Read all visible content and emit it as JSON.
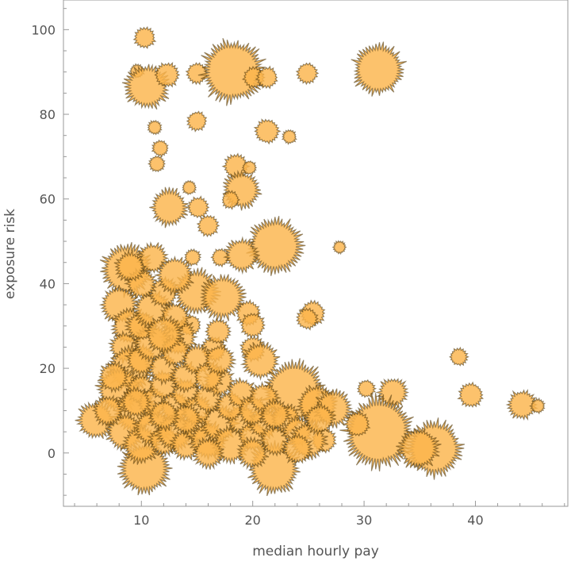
{
  "chart_data": {
    "type": "scatter",
    "subtype": "bubble",
    "title": "",
    "xlabel": "median hourly pay",
    "ylabel": "exposure risk",
    "xlim": [
      3,
      48.3
    ],
    "ylim": [
      -12.6,
      107
    ],
    "xticks": [
      10,
      20,
      30,
      40
    ],
    "yticks": [
      0,
      20,
      40,
      60,
      80,
      100
    ],
    "grid": false,
    "color": "#fbb54c",
    "points": [
      [
        10.3,
        98.1,
        3
      ],
      [
        9.6,
        90.2,
        2
      ],
      [
        10.5,
        86.5,
        6
      ],
      [
        12.3,
        89.3,
        3.5
      ],
      [
        15.0,
        89.7,
        3
      ],
      [
        18.2,
        90.2,
        8.5
      ],
      [
        20.1,
        88.7,
        3
      ],
      [
        21.3,
        88.7,
        3
      ],
      [
        24.9,
        89.7,
        3
      ],
      [
        31.3,
        90.6,
        7
      ],
      [
        11.2,
        76.9,
        2
      ],
      [
        15.0,
        78.4,
        2.8
      ],
      [
        21.3,
        76.0,
        3.5
      ],
      [
        23.3,
        74.7,
        2
      ],
      [
        11.7,
        72.0,
        2.3
      ],
      [
        11.4,
        68.3,
        2.3
      ],
      [
        18.5,
        67.7,
        3.5
      ],
      [
        19.7,
        67.4,
        2
      ],
      [
        19.0,
        62.1,
        5
      ],
      [
        14.3,
        62.7,
        2
      ],
      [
        12.5,
        58.0,
        5
      ],
      [
        15.1,
        58.0,
        3
      ],
      [
        16.0,
        53.7,
        3
      ],
      [
        18.0,
        59.8,
        2.5
      ],
      [
        22.0,
        49.0,
        7.5
      ],
      [
        27.8,
        48.6,
        1.8
      ],
      [
        14.6,
        46.2,
        2.3
      ],
      [
        17.1,
        46.2,
        2.5
      ],
      [
        19.0,
        46.7,
        4.5
      ],
      [
        8.7,
        43.3,
        7
      ],
      [
        14.9,
        38.1,
        6
      ],
      [
        17.3,
        36.8,
        6
      ],
      [
        19.6,
        33.0,
        3.5
      ],
      [
        20.0,
        30.2,
        3.5
      ],
      [
        25.4,
        33.0,
        3.5
      ],
      [
        24.9,
        31.7,
        3
      ],
      [
        38.5,
        22.7,
        2.5
      ],
      [
        30.2,
        15.2,
        2.5
      ],
      [
        32.6,
        14.3,
        4
      ],
      [
        39.6,
        13.7,
        3.5
      ],
      [
        44.2,
        11.4,
        4
      ],
      [
        45.6,
        11.1,
        2
      ],
      [
        31.3,
        4.9,
        9.5
      ],
      [
        36.3,
        1.1,
        7.5
      ],
      [
        34.9,
        1.1,
        5.5
      ],
      [
        23.7,
        14.3,
        8.5
      ],
      [
        25.8,
        11.4,
        5.5
      ],
      [
        27.2,
        10.5,
        5
      ],
      [
        26.4,
        3.0,
        3.5
      ],
      [
        29.4,
        6.8,
        3.5
      ],
      [
        21.9,
        -3.6,
        7
      ],
      [
        20.0,
        24.6,
        3.5
      ],
      [
        20.7,
        21.8,
        5
      ],
      [
        16.5,
        24.6,
        3.5
      ],
      [
        16.9,
        28.7,
        3.5
      ],
      [
        14.4,
        30.2,
        3
      ],
      [
        13.3,
        27.4,
        5
      ],
      [
        10.3,
        -3.6,
        7
      ],
      [
        5.9,
        7.7,
        5
      ],
      [
        8,
        35,
        5
      ],
      [
        9,
        30,
        5
      ],
      [
        8.5,
        25,
        4
      ],
      [
        9,
        20,
        6
      ],
      [
        8,
        15,
        6
      ],
      [
        9.5,
        10,
        6
      ],
      [
        8.5,
        5,
        5
      ],
      [
        10,
        2,
        5
      ],
      [
        11,
        6,
        5
      ],
      [
        12,
        3,
        4
      ],
      [
        13,
        5,
        5
      ],
      [
        14,
        2,
        4
      ],
      [
        15,
        6,
        4
      ],
      [
        16,
        3,
        5
      ],
      [
        17,
        7,
        5
      ],
      [
        18,
        2,
        5
      ],
      [
        19,
        8,
        4
      ],
      [
        20,
        4,
        4
      ],
      [
        21,
        7,
        4
      ],
      [
        22,
        3,
        4
      ],
      [
        23,
        8,
        4
      ],
      [
        24,
        5,
        4
      ],
      [
        25,
        3,
        5
      ],
      [
        26,
        8,
        4
      ],
      [
        10,
        15,
        4
      ],
      [
        11,
        12,
        4
      ],
      [
        12,
        16,
        4
      ],
      [
        13,
        11,
        4
      ],
      [
        14,
        14,
        4
      ],
      [
        15,
        10,
        4
      ],
      [
        16,
        13,
        4
      ],
      [
        17,
        17,
        4
      ],
      [
        18,
        11,
        4
      ],
      [
        19,
        14,
        4
      ],
      [
        20,
        10,
        4
      ],
      [
        21,
        13,
        4
      ],
      [
        22,
        9,
        4
      ],
      [
        10,
        22,
        4
      ],
      [
        11,
        26,
        5
      ],
      [
        12,
        20,
        4
      ],
      [
        13,
        24,
        4
      ],
      [
        14,
        18,
        4
      ],
      [
        15,
        22,
        4
      ],
      [
        10,
        30,
        4
      ],
      [
        11,
        34,
        5
      ],
      [
        12,
        38,
        4
      ],
      [
        13,
        32,
        4
      ],
      [
        10,
        40,
        4
      ],
      [
        11,
        46,
        4
      ],
      [
        9,
        44,
        4
      ],
      [
        12,
        28,
        5
      ],
      [
        13,
        42,
        5
      ],
      [
        16,
        18,
        4
      ],
      [
        17,
        22,
        4
      ],
      [
        14,
        8,
        4
      ],
      [
        12,
        9,
        4
      ],
      [
        9.5,
        12,
        4
      ],
      [
        16,
        0,
        4
      ],
      [
        20,
        0,
        4
      ],
      [
        24,
        1,
        4
      ],
      [
        7,
        10,
        4
      ],
      [
        7.5,
        18,
        4
      ]
    ]
  }
}
